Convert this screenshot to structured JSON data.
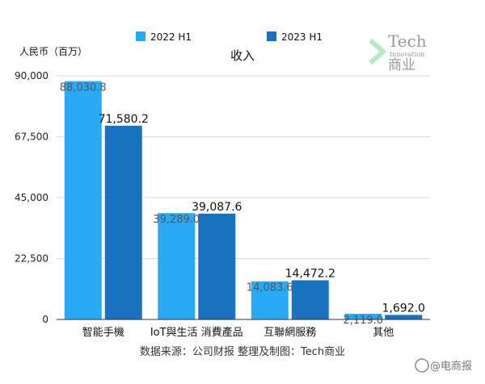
{
  "chart_data": {
    "type": "bar",
    "title": "收入",
    "ylabel": "人民币（百万）",
    "xlabel": "",
    "categories": [
      "智能手機",
      "IoT與生活 消費產品",
      "互聯網服務",
      "其他"
    ],
    "series": [
      {
        "name": "2022 H1",
        "values": [
          88030.8,
          39289.0,
          14083.6,
          2119.0
        ],
        "labels": [
          "88,030.8",
          "39,289.0",
          "14,083.6",
          "2,119.0"
        ],
        "color": "#2aa9f4"
      },
      {
        "name": "2023 H1",
        "values": [
          71580.2,
          39087.6,
          14472.2,
          1692.0
        ],
        "labels": [
          "71,580.2",
          "39,087.6",
          "14,472.2",
          "1,692.0"
        ],
        "color": "#1a72bf"
      }
    ],
    "ylim": [
      0,
      90000
    ],
    "yticks": [
      0,
      22500,
      45000,
      67500,
      90000
    ],
    "ytick_labels": [
      "0",
      "22,500",
      "45,000",
      "67,500",
      "90,000"
    ],
    "grid": true,
    "legend_position": "top"
  },
  "source_note": "数据来源：公司财报 整理及制图：Tech商业",
  "watermark": {
    "line1": "Tech",
    "line2": "Innovation",
    "line3": "商业"
  },
  "corner_mark": "@电商报"
}
